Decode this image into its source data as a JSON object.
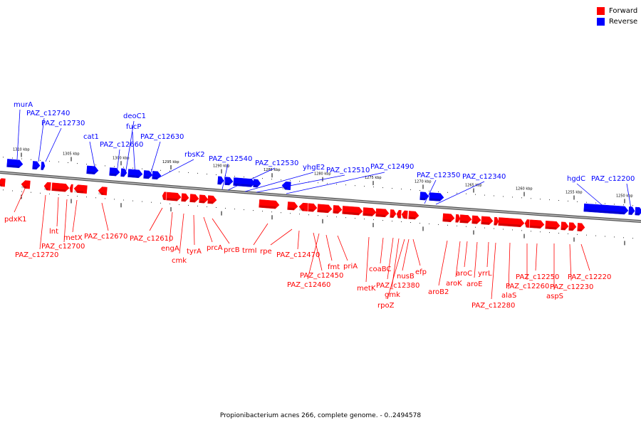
{
  "legend": {
    "forward_label": "Forward",
    "reverse_label": "Reverse",
    "forward_color": "#ff0000",
    "reverse_color": "#0000ff"
  },
  "caption": "Propionibacterium acnes 266, complete genome. - 0..2494578",
  "ticks": [
    "1310 kbp",
    "1305 kbp",
    "1300 kbp",
    "1295 kbp",
    "1290 kbp",
    "1285 kbp",
    "1280 kbp",
    "1275 kbp",
    "1270 kbp",
    "1265 kbp",
    "1260 kbp",
    "1255 kbp",
    "1250 kbp"
  ],
  "reverse_genes": [
    "murA",
    "PAZ_c12740",
    "PAZ_c12730",
    "cat1",
    "PAZ_c12660",
    "deoC1",
    "fucP",
    "PAZ_c12630",
    "rbsK2",
    "PAZ_c12540",
    "PAZ_c12530",
    "yhgE2",
    "PAZ_c12510",
    "PAZ_c12490",
    "PAZ_c12350",
    "PAZ_c12340",
    "hgdC",
    "PAZ_c12200"
  ],
  "forward_genes": [
    "pdxK1",
    "PAZ_c12720",
    "lnt",
    "PAZ_c12700",
    "metX",
    "PAZ_c12670",
    "PAZ_c12610",
    "engA",
    "cmk",
    "tyrA",
    "prcA",
    "prcB",
    "trmI",
    "rpe",
    "PAZ_c12470",
    "PAZ_c12450",
    "PAZ_c12460",
    "fmt",
    "priA",
    "metK",
    "coaBC",
    "PAZ_c12380",
    "gmk",
    "rpoZ",
    "nusB",
    "efp",
    "aroB2",
    "aroK",
    "aroC",
    "aroE",
    "yrrL",
    "PAZ_c12280",
    "alaS",
    "PAZ_c12260",
    "PAZ_c12250",
    "aspS",
    "PAZ_c12230",
    "PAZ_c12220"
  ]
}
